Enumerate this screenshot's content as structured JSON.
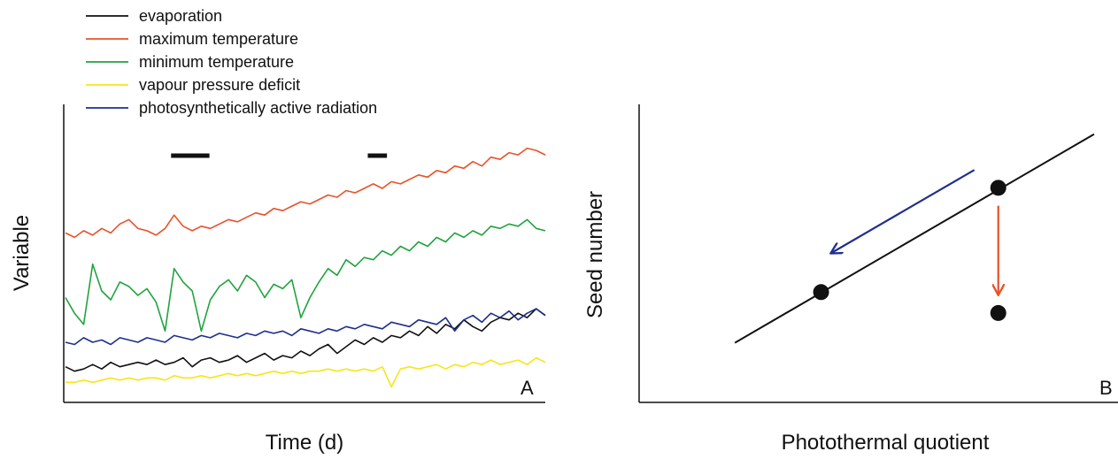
{
  "chart_data": [
    {
      "panel": "A",
      "type": "line",
      "xlabel": "Time (d)",
      "ylabel": "Variable",
      "legend_position": "top-left",
      "grid": false,
      "series": [
        {
          "name": "evaporation",
          "color": "#111111",
          "values": [
            0.14,
            0.12,
            0.13,
            0.15,
            0.13,
            0.16,
            0.14,
            0.15,
            0.16,
            0.15,
            0.17,
            0.15,
            0.16,
            0.18,
            0.14,
            0.17,
            0.18,
            0.16,
            0.17,
            0.19,
            0.16,
            0.18,
            0.2,
            0.17,
            0.19,
            0.18,
            0.21,
            0.19,
            0.22,
            0.24,
            0.2,
            0.23,
            0.26,
            0.24,
            0.27,
            0.25,
            0.28,
            0.27,
            0.3,
            0.28,
            0.32,
            0.29,
            0.33,
            0.31,
            0.35,
            0.32,
            0.3,
            0.34,
            0.36,
            0.35,
            0.38,
            0.36,
            0.4,
            0.37
          ]
        },
        {
          "name": "maximum temperature",
          "color": "#e8522a",
          "values": [
            0.74,
            0.72,
            0.75,
            0.73,
            0.76,
            0.74,
            0.78,
            0.8,
            0.76,
            0.75,
            0.73,
            0.76,
            0.82,
            0.77,
            0.75,
            0.77,
            0.76,
            0.78,
            0.8,
            0.79,
            0.81,
            0.83,
            0.82,
            0.85,
            0.84,
            0.86,
            0.88,
            0.87,
            0.89,
            0.91,
            0.9,
            0.93,
            0.92,
            0.94,
            0.96,
            0.94,
            0.97,
            0.96,
            0.98,
            1.0,
            0.99,
            1.02,
            1.01,
            1.04,
            1.03,
            1.06,
            1.04,
            1.08,
            1.07,
            1.1,
            1.09,
            1.12,
            1.11,
            1.09
          ]
        },
        {
          "name": "minimum temperature",
          "color": "#21a33f",
          "values": [
            0.45,
            0.38,
            0.33,
            0.6,
            0.48,
            0.44,
            0.52,
            0.5,
            0.46,
            0.49,
            0.43,
            0.3,
            0.58,
            0.52,
            0.48,
            0.3,
            0.44,
            0.5,
            0.53,
            0.48,
            0.55,
            0.52,
            0.45,
            0.51,
            0.49,
            0.53,
            0.36,
            0.45,
            0.52,
            0.58,
            0.55,
            0.62,
            0.59,
            0.63,
            0.62,
            0.66,
            0.64,
            0.68,
            0.66,
            0.7,
            0.68,
            0.72,
            0.7,
            0.74,
            0.72,
            0.75,
            0.73,
            0.77,
            0.76,
            0.78,
            0.77,
            0.8,
            0.76,
            0.75
          ]
        },
        {
          "name": "vapour pressure deficit",
          "color": "#f5e61a",
          "values": [
            0.07,
            0.07,
            0.08,
            0.07,
            0.08,
            0.09,
            0.08,
            0.09,
            0.08,
            0.09,
            0.09,
            0.08,
            0.1,
            0.09,
            0.09,
            0.1,
            0.09,
            0.1,
            0.11,
            0.1,
            0.11,
            0.1,
            0.11,
            0.12,
            0.11,
            0.12,
            0.11,
            0.12,
            0.12,
            0.13,
            0.12,
            0.13,
            0.12,
            0.13,
            0.12,
            0.14,
            0.05,
            0.13,
            0.14,
            0.13,
            0.14,
            0.15,
            0.13,
            0.15,
            0.14,
            0.16,
            0.15,
            0.17,
            0.15,
            0.16,
            0.17,
            0.15,
            0.18,
            0.16
          ]
        },
        {
          "name": "photosynthetically active radiation",
          "color": "#1f2f8c",
          "values": [
            0.25,
            0.24,
            0.27,
            0.25,
            0.26,
            0.24,
            0.27,
            0.26,
            0.25,
            0.27,
            0.26,
            0.25,
            0.28,
            0.27,
            0.26,
            0.28,
            0.27,
            0.29,
            0.28,
            0.27,
            0.29,
            0.28,
            0.3,
            0.29,
            0.3,
            0.28,
            0.31,
            0.3,
            0.29,
            0.31,
            0.3,
            0.32,
            0.31,
            0.33,
            0.32,
            0.31,
            0.34,
            0.33,
            0.32,
            0.35,
            0.34,
            0.33,
            0.36,
            0.3,
            0.35,
            0.37,
            0.34,
            0.38,
            0.36,
            0.39,
            0.35,
            0.38,
            0.4,
            0.37
          ]
        }
      ],
      "bars": [
        {
          "start": 0.22,
          "end": 0.3
        },
        {
          "start": 0.63,
          "end": 0.67
        }
      ],
      "panel_label": "A"
    },
    {
      "panel": "B",
      "type": "scatter",
      "xlabel": "Photothermal quotient",
      "ylabel": "Seed number",
      "panel_label": "B",
      "line": {
        "x": [
          0.2,
          0.95
        ],
        "y": [
          0.2,
          0.9
        ]
      },
      "points": [
        {
          "x": 0.38,
          "y": 0.37
        },
        {
          "x": 0.75,
          "y": 0.72
        },
        {
          "x": 0.75,
          "y": 0.3
        }
      ],
      "arrows": [
        {
          "color": "#1f2f8c",
          "from": [
            0.7,
            0.78
          ],
          "to": [
            0.4,
            0.5
          ]
        },
        {
          "color": "#e8522a",
          "from": [
            0.75,
            0.66
          ],
          "to": [
            0.75,
            0.36
          ]
        }
      ]
    }
  ]
}
